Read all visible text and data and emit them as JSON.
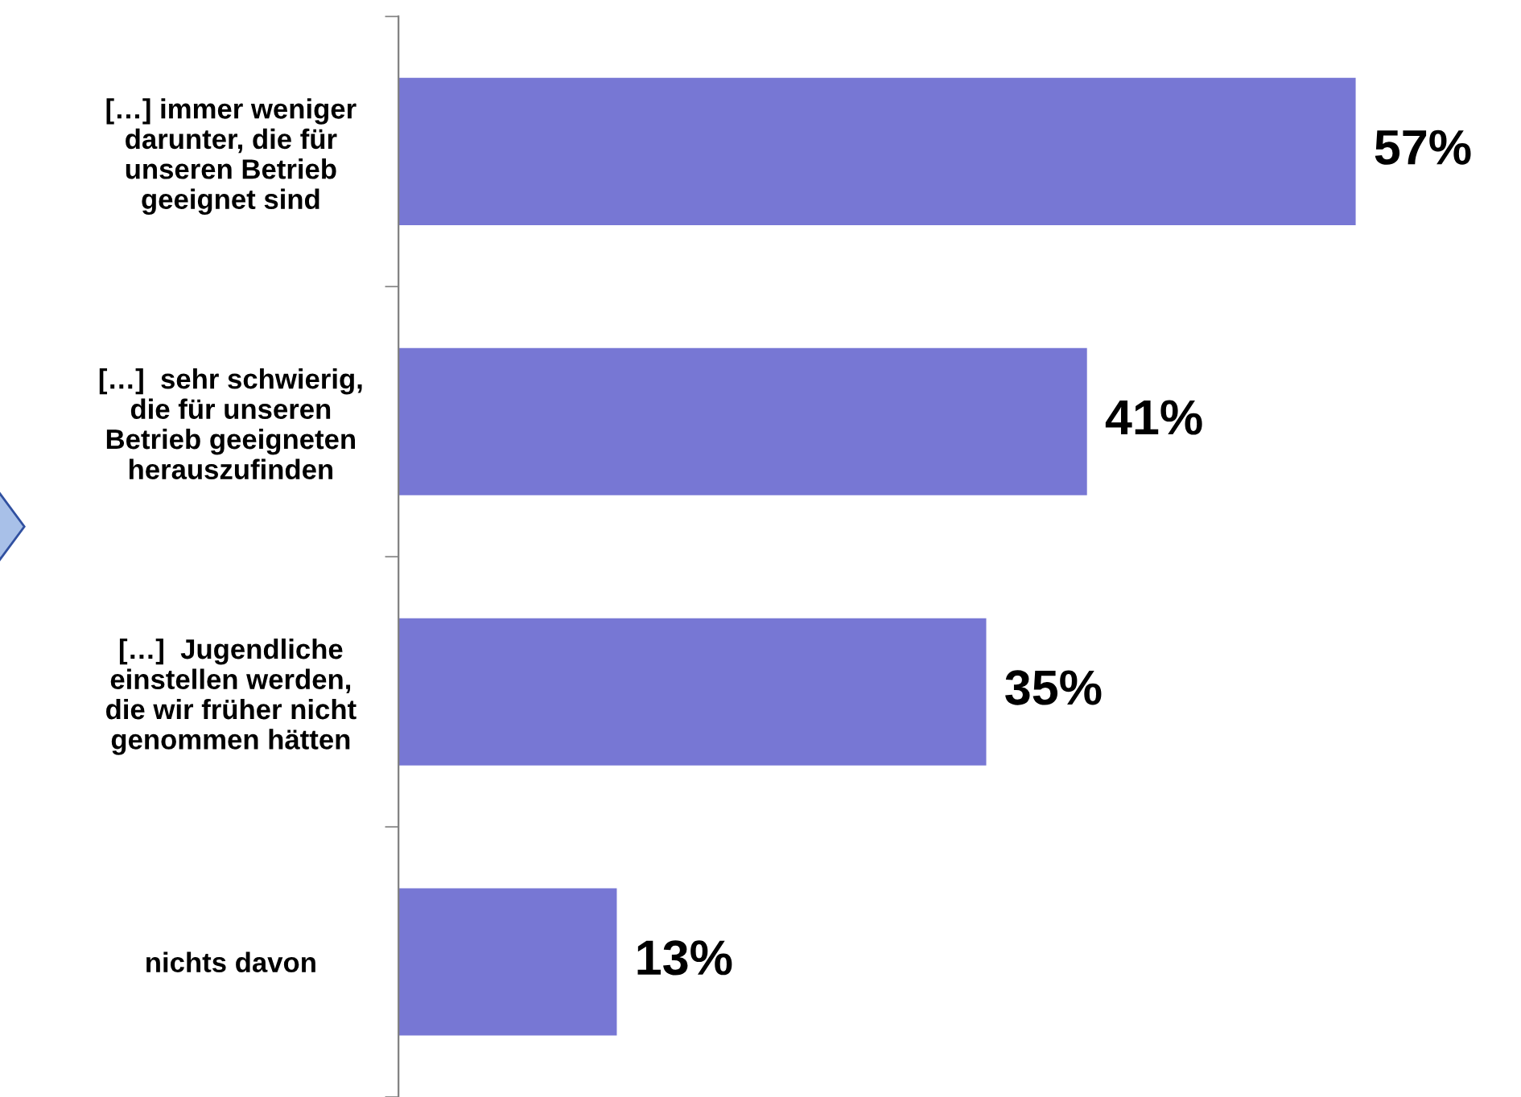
{
  "chart_data": {
    "type": "bar",
    "orientation": "horizontal",
    "categories": [
      "[…] immer weniger\ndarunter, die für\nunseren Betrieb\ngeeignet sind",
      "[…]  sehr schwierig,\ndie für unseren\nBetrieb geeigneten\nherauszufinden",
      "[…]  Jugendliche\neinstellen werden,\ndie wir früher nicht\ngenommen hätten",
      "nichts davon"
    ],
    "values": [
      57,
      41,
      35,
      13
    ],
    "value_labels": [
      "57%",
      "41%",
      "35%",
      "13%"
    ],
    "color": "#7777d4",
    "grid": false,
    "legend": false
  }
}
